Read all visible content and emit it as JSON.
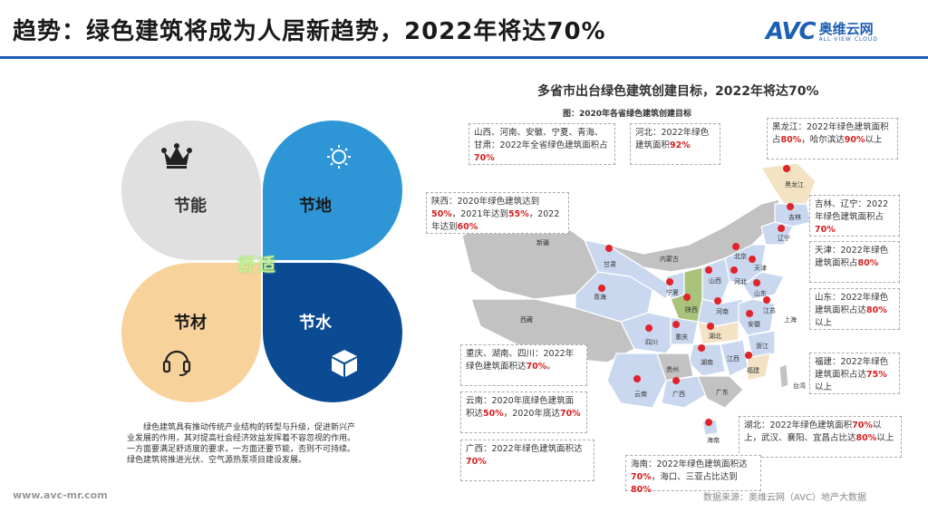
{
  "header": {
    "title": "趋势：绿色建筑将成为人居新趋势，2022年将达70%",
    "logo_avc": "AVC",
    "logo_cn": "奥维云网",
    "logo_en": "ALL VIEW CLOUD"
  },
  "left": {
    "petals": [
      {
        "label": "节能",
        "icon": "crown-icon"
      },
      {
        "label": "节地",
        "icon": "sun-icon"
      },
      {
        "label": "节材",
        "icon": "headset-icon"
      },
      {
        "label": "节水",
        "icon": "cube-icon"
      }
    ],
    "center_word": "舒适",
    "description": [
      "绿色建筑具有推动传统产业结构的转型与升级，促进新兴产",
      "业发展的作用，其对提高社会经济效益发挥着不容忽视的作用。",
      "一方面要满足舒适度的要求，一方面还要节能，否则不可持续。",
      "绿色建筑将推进光伏、空气源热泵项目建设发展。"
    ]
  },
  "map": {
    "title": "多省市出台绿色建筑创建目标，2022年将达70%",
    "subtitle": "图：2020年各省绿色建筑创建目标",
    "provinces": [
      "新疆",
      "西藏",
      "青海",
      "甘肃",
      "四川",
      "云南",
      "内蒙古",
      "黑龙江",
      "吉林",
      "辽宁",
      "北京",
      "天津",
      "河北",
      "山西",
      "陕西",
      "宁夏",
      "山东",
      "河南",
      "江苏",
      "安徽",
      "上海",
      "湖北",
      "浙江",
      "重庆",
      "湖南",
      "江西",
      "福建",
      "贵州",
      "广西",
      "广东",
      "台湾",
      "海南"
    ],
    "notes": [
      {
        "id": "nw",
        "parts": [
          [
            "山西、河南、安徽、宁夏、青海、甘肃：2022年全省绿色建筑面积占",
            0
          ],
          [
            "70%",
            1
          ]
        ]
      },
      {
        "id": "hebei",
        "parts": [
          [
            "河北：2022年绿色建筑面积",
            0
          ],
          [
            "92%",
            1
          ]
        ]
      },
      {
        "id": "hlj",
        "parts": [
          [
            "黑龙江：2022年绿色建筑面积占",
            0
          ],
          [
            "80%",
            1
          ],
          [
            "，哈尔滨达",
            0
          ],
          [
            "90%",
            1
          ],
          [
            "以上",
            0
          ]
        ]
      },
      {
        "id": "shaanxi",
        "parts": [
          [
            "陕西：2020年绿色建筑达到",
            0
          ],
          [
            "50%",
            1
          ],
          [
            "，2021年达到",
            0
          ],
          [
            "55%",
            1
          ],
          [
            "，2022年达到",
            0
          ],
          [
            "60%",
            1
          ]
        ]
      },
      {
        "id": "jilin",
        "parts": [
          [
            "吉林、辽宁：2022年绿色建筑面积占",
            0
          ],
          [
            "70%",
            1
          ]
        ]
      },
      {
        "id": "tianjin",
        "parts": [
          [
            "天津：2022年绿色建筑面积占",
            0
          ],
          [
            "80%",
            1
          ]
        ]
      },
      {
        "id": "shandong",
        "parts": [
          [
            "山东：2022年绿色建筑面积占达",
            0
          ],
          [
            "80%",
            1
          ],
          [
            "以上",
            0
          ]
        ]
      },
      {
        "id": "chongqing",
        "parts": [
          [
            "重庆、湖南、四川：2022年绿色建筑面积达",
            0
          ],
          [
            "70%",
            1
          ],
          [
            "。",
            0
          ]
        ]
      },
      {
        "id": "yunnan",
        "parts": [
          [
            "云南：2020年底绿色建筑面积达",
            0
          ],
          [
            "50%",
            1
          ],
          [
            "，2020年底达",
            0
          ],
          [
            "70%",
            1
          ]
        ]
      },
      {
        "id": "guangxi",
        "parts": [
          [
            "广西：2022年绿色建筑面积达",
            0
          ],
          [
            "70%",
            1
          ]
        ]
      },
      {
        "id": "fujian",
        "parts": [
          [
            "福建：2022年绿色建筑面积占达",
            0
          ],
          [
            "75%",
            1
          ],
          [
            "以上",
            0
          ]
        ]
      },
      {
        "id": "hubei",
        "parts": [
          [
            "湖北：2022年绿色建筑面积",
            0
          ],
          [
            "70%",
            1
          ],
          [
            "以上，武汉、襄阳、宜昌占比达",
            0
          ],
          [
            "80%",
            1
          ],
          [
            "以上",
            0
          ]
        ]
      },
      {
        "id": "hainan",
        "parts": [
          [
            "海南：2022年绿色建筑面积达",
            0
          ],
          [
            "70%",
            1
          ],
          [
            "，海口、三亚占比达到",
            0
          ],
          [
            "80%",
            1
          ]
        ]
      }
    ]
  },
  "footer": {
    "url": "www.avc-mr.com",
    "source": "数据来源：奥维云网（AVC）地产大数据"
  },
  "colors": {
    "brand": "#1d5fb4",
    "highlight": "#d62020",
    "green_province": "#a9c27c",
    "beige_province": "#f3e3c4",
    "blue_province": "#c9d8ef",
    "gray_province": "#c2c2c2"
  }
}
